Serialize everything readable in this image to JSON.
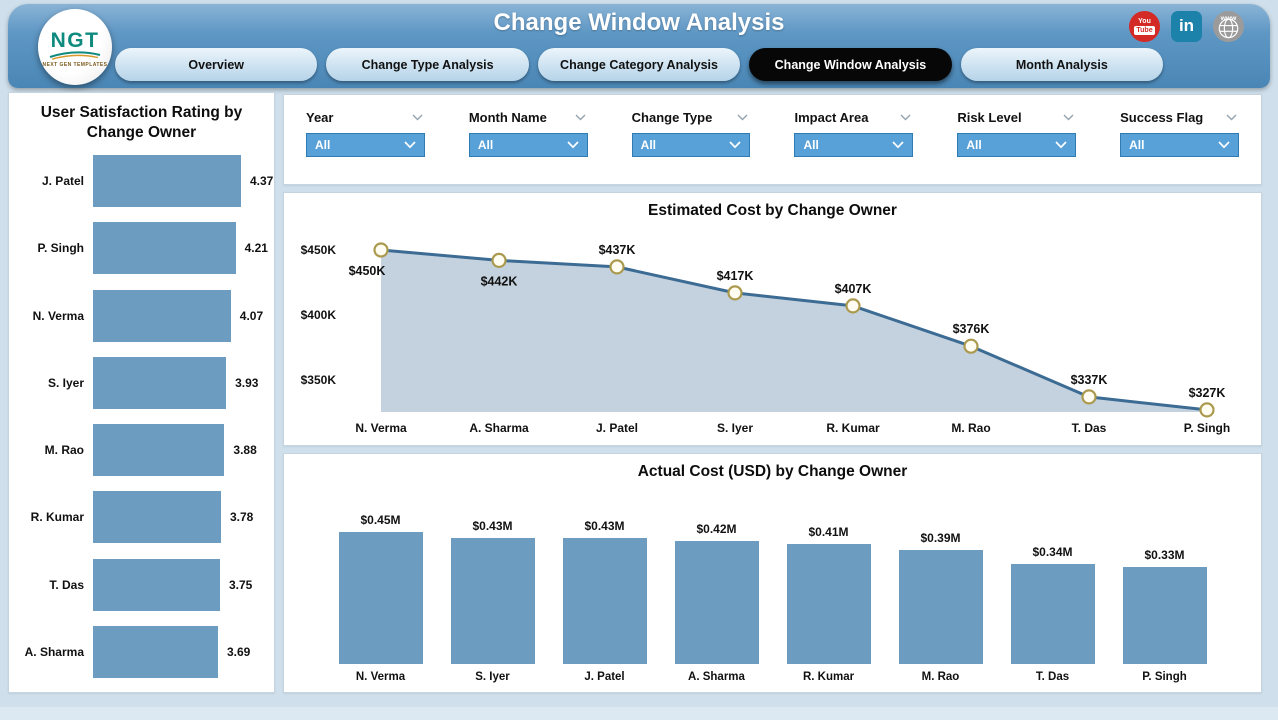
{
  "header": {
    "title": "Change Window Analysis",
    "logo": {
      "text": "NGT",
      "subtext": "NEXT GEN TEMPLATES"
    },
    "social": [
      {
        "name": "youtube",
        "text_top": "You",
        "text_bottom": "Tube"
      },
      {
        "name": "linkedin",
        "text": "in"
      },
      {
        "name": "website",
        "text": "www"
      }
    ]
  },
  "nav": {
    "tabs": [
      {
        "label": "Overview",
        "active": false
      },
      {
        "label": "Change Type Analysis",
        "active": false
      },
      {
        "label": "Change Category Analysis",
        "active": false
      },
      {
        "label": "Change Window Analysis",
        "active": true
      },
      {
        "label": "Month Analysis",
        "active": false
      }
    ]
  },
  "filters": [
    {
      "label": "Year",
      "value": "All"
    },
    {
      "label": "Month Name",
      "value": "All"
    },
    {
      "label": "Change Type",
      "value": "All"
    },
    {
      "label": "Impact Area",
      "value": "All"
    },
    {
      "label": "Risk Level",
      "value": "All"
    },
    {
      "label": "Success Flag",
      "value": "All"
    }
  ],
  "chart_data": [
    {
      "type": "bar",
      "orientation": "horizontal",
      "title": "User Satisfaction Rating by Change Owner",
      "categories": [
        "J. Patel",
        "P. Singh",
        "N. Verma",
        "S. Iyer",
        "M. Rao",
        "R. Kumar",
        "T. Das",
        "A. Sharma"
      ],
      "values": [
        4.37,
        4.21,
        4.07,
        3.93,
        3.88,
        3.78,
        3.75,
        3.69
      ],
      "value_labels": [
        "4.37",
        "4.21",
        "4.07",
        "3.93",
        "3.88",
        "3.78",
        "3.75",
        "3.69"
      ],
      "xlim": [
        0,
        4.6
      ],
      "grid": false,
      "legend": "none"
    },
    {
      "type": "area",
      "title": "Estimated Cost by Change Owner",
      "categories": [
        "N. Verma",
        "A. Sharma",
        "J. Patel",
        "S. Iyer",
        "R. Kumar",
        "M. Rao",
        "T. Das",
        "P. Singh"
      ],
      "values": [
        450,
        442,
        437,
        417,
        407,
        376,
        337,
        327
      ],
      "unit": "USD thousands",
      "value_labels": [
        "$450K",
        "$442K",
        "$437K",
        "$417K",
        "$407K",
        "$376K",
        "$337K",
        "$327K"
      ],
      "ylabel_ticks": [
        "$450K",
        "$400K",
        "$350K"
      ],
      "ytick_values": [
        450,
        400,
        350
      ],
      "ylim": [
        320,
        465
      ],
      "grid": false,
      "legend": "none",
      "markers": true
    },
    {
      "type": "bar",
      "orientation": "vertical",
      "title": "Actual Cost (USD) by Change Owner",
      "categories": [
        "N. Verma",
        "S. Iyer",
        "J. Patel",
        "A. Sharma",
        "R. Kumar",
        "M. Rao",
        "T. Das",
        "P. Singh"
      ],
      "values": [
        0.45,
        0.43,
        0.43,
        0.42,
        0.41,
        0.39,
        0.34,
        0.33
      ],
      "unit": "USD millions",
      "value_labels": [
        "$0.45M",
        "$0.43M",
        "$0.43M",
        "$0.42M",
        "$0.41M",
        "$0.39M",
        "$0.34M",
        "$0.33M"
      ],
      "ylim": [
        0,
        0.5
      ],
      "grid": false,
      "legend": "none"
    }
  ],
  "colors": {
    "page_bg": "#cfe0ec",
    "header_blue": "#5590bf",
    "bar": "#6d9cc1",
    "area_fill": "#c4d2df",
    "area_line": "#3c6b93",
    "marker_stroke": "#ab9a4e",
    "filter_bg": "#58a1d8",
    "active_tab": "#070707",
    "youtube_red": "#d32a25",
    "linkedin_teal": "#1d82aa",
    "globe_gray": "#9b9b9b"
  }
}
